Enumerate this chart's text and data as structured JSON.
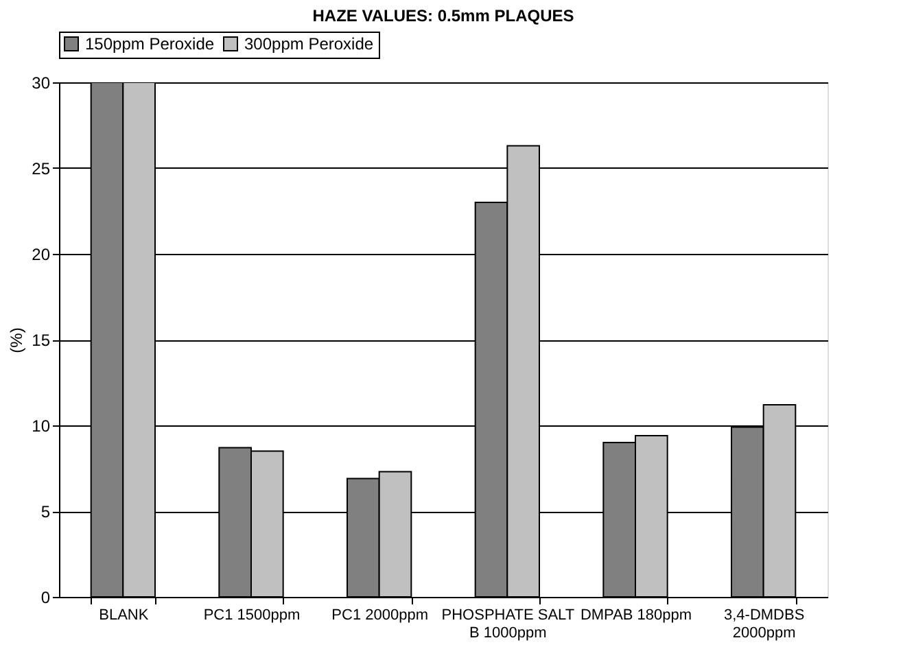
{
  "chart_data": {
    "type": "bar",
    "title": "HAZE VALUES: 0.5mm PLAQUES",
    "ylabel": "(%)",
    "categories": [
      "BLANK",
      "PC1 1500ppm",
      "PC1 2000ppm",
      "PHOSPHATE SALT B 1000ppm",
      "DMPAB 180ppm",
      "3,4-DMDBS 2000ppm"
    ],
    "series": [
      {
        "name": "150ppm Peroxide",
        "color": "#808080",
        "values": [
          30,
          8.7,
          6.9,
          23.0,
          9.0,
          9.9
        ]
      },
      {
        "name": "300ppm Peroxide",
        "color": "#c0c0c0",
        "values": [
          30,
          8.5,
          7.3,
          26.3,
          9.4,
          11.2
        ]
      }
    ],
    "ylim": [
      0,
      30
    ],
    "yticks": [
      0,
      5,
      10,
      15,
      20,
      25,
      30
    ],
    "grid": "y",
    "legend": "top"
  }
}
